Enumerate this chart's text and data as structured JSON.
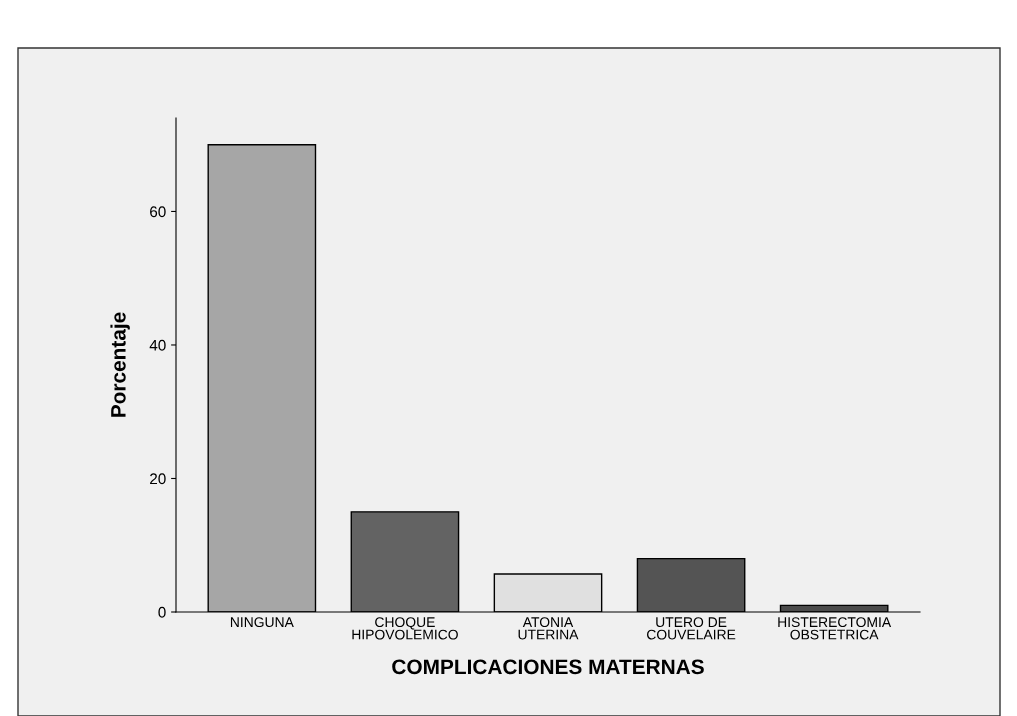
{
  "chart_data": {
    "type": "bar",
    "xlabel": "COMPLICACIONES MATERNAS",
    "ylabel": "Porcentaje",
    "categories": [
      "NINGUNA",
      "CHOQUE\nHIPOVOLEMICO",
      "ATONIA\nUTERINA",
      "UTERO DE\nCOUVELAIRE",
      "HISTERECTOMIA\nOBSTETRICA"
    ],
    "values": [
      70,
      15,
      5.7,
      8,
      1
    ],
    "colors": [
      "#a6a6a6",
      "#636363",
      "#e0e0e0",
      "#545454",
      "#4a4a4a"
    ],
    "ylim": [
      0,
      74
    ],
    "yticks": [
      0,
      20,
      40,
      60
    ],
    "grid": false,
    "legend": false
  }
}
